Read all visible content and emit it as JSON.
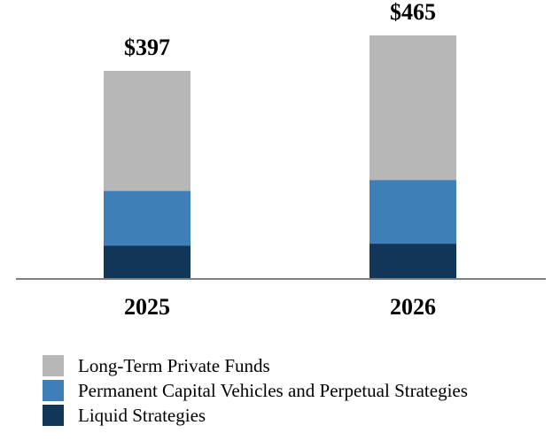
{
  "chart_data": {
    "type": "bar",
    "stacked": true,
    "categories": [
      "2025",
      "2026"
    ],
    "totals": [
      "$397",
      "$465"
    ],
    "series": [
      {
        "name": "Liquid Strategies",
        "values": [
          62,
          66
        ],
        "color": "#12365A"
      },
      {
        "name": "Permanent Capital Vehicles and Perpetual Strategies",
        "values": [
          105,
          122
        ],
        "color": "#3E7FB7"
      },
      {
        "name": "Long-Term Private Funds",
        "values": [
          230,
          277
        ],
        "color": "#B7B7B7"
      }
    ],
    "legend_order": [
      "Long-Term Private Funds",
      "Permanent Capital Vehicles and Perpetual Strategies",
      "Liquid Strategies"
    ],
    "ylim": [
      0,
      470
    ],
    "grid": false,
    "legend_position": "bottom-left",
    "axis_color": "#7F7F7F"
  }
}
